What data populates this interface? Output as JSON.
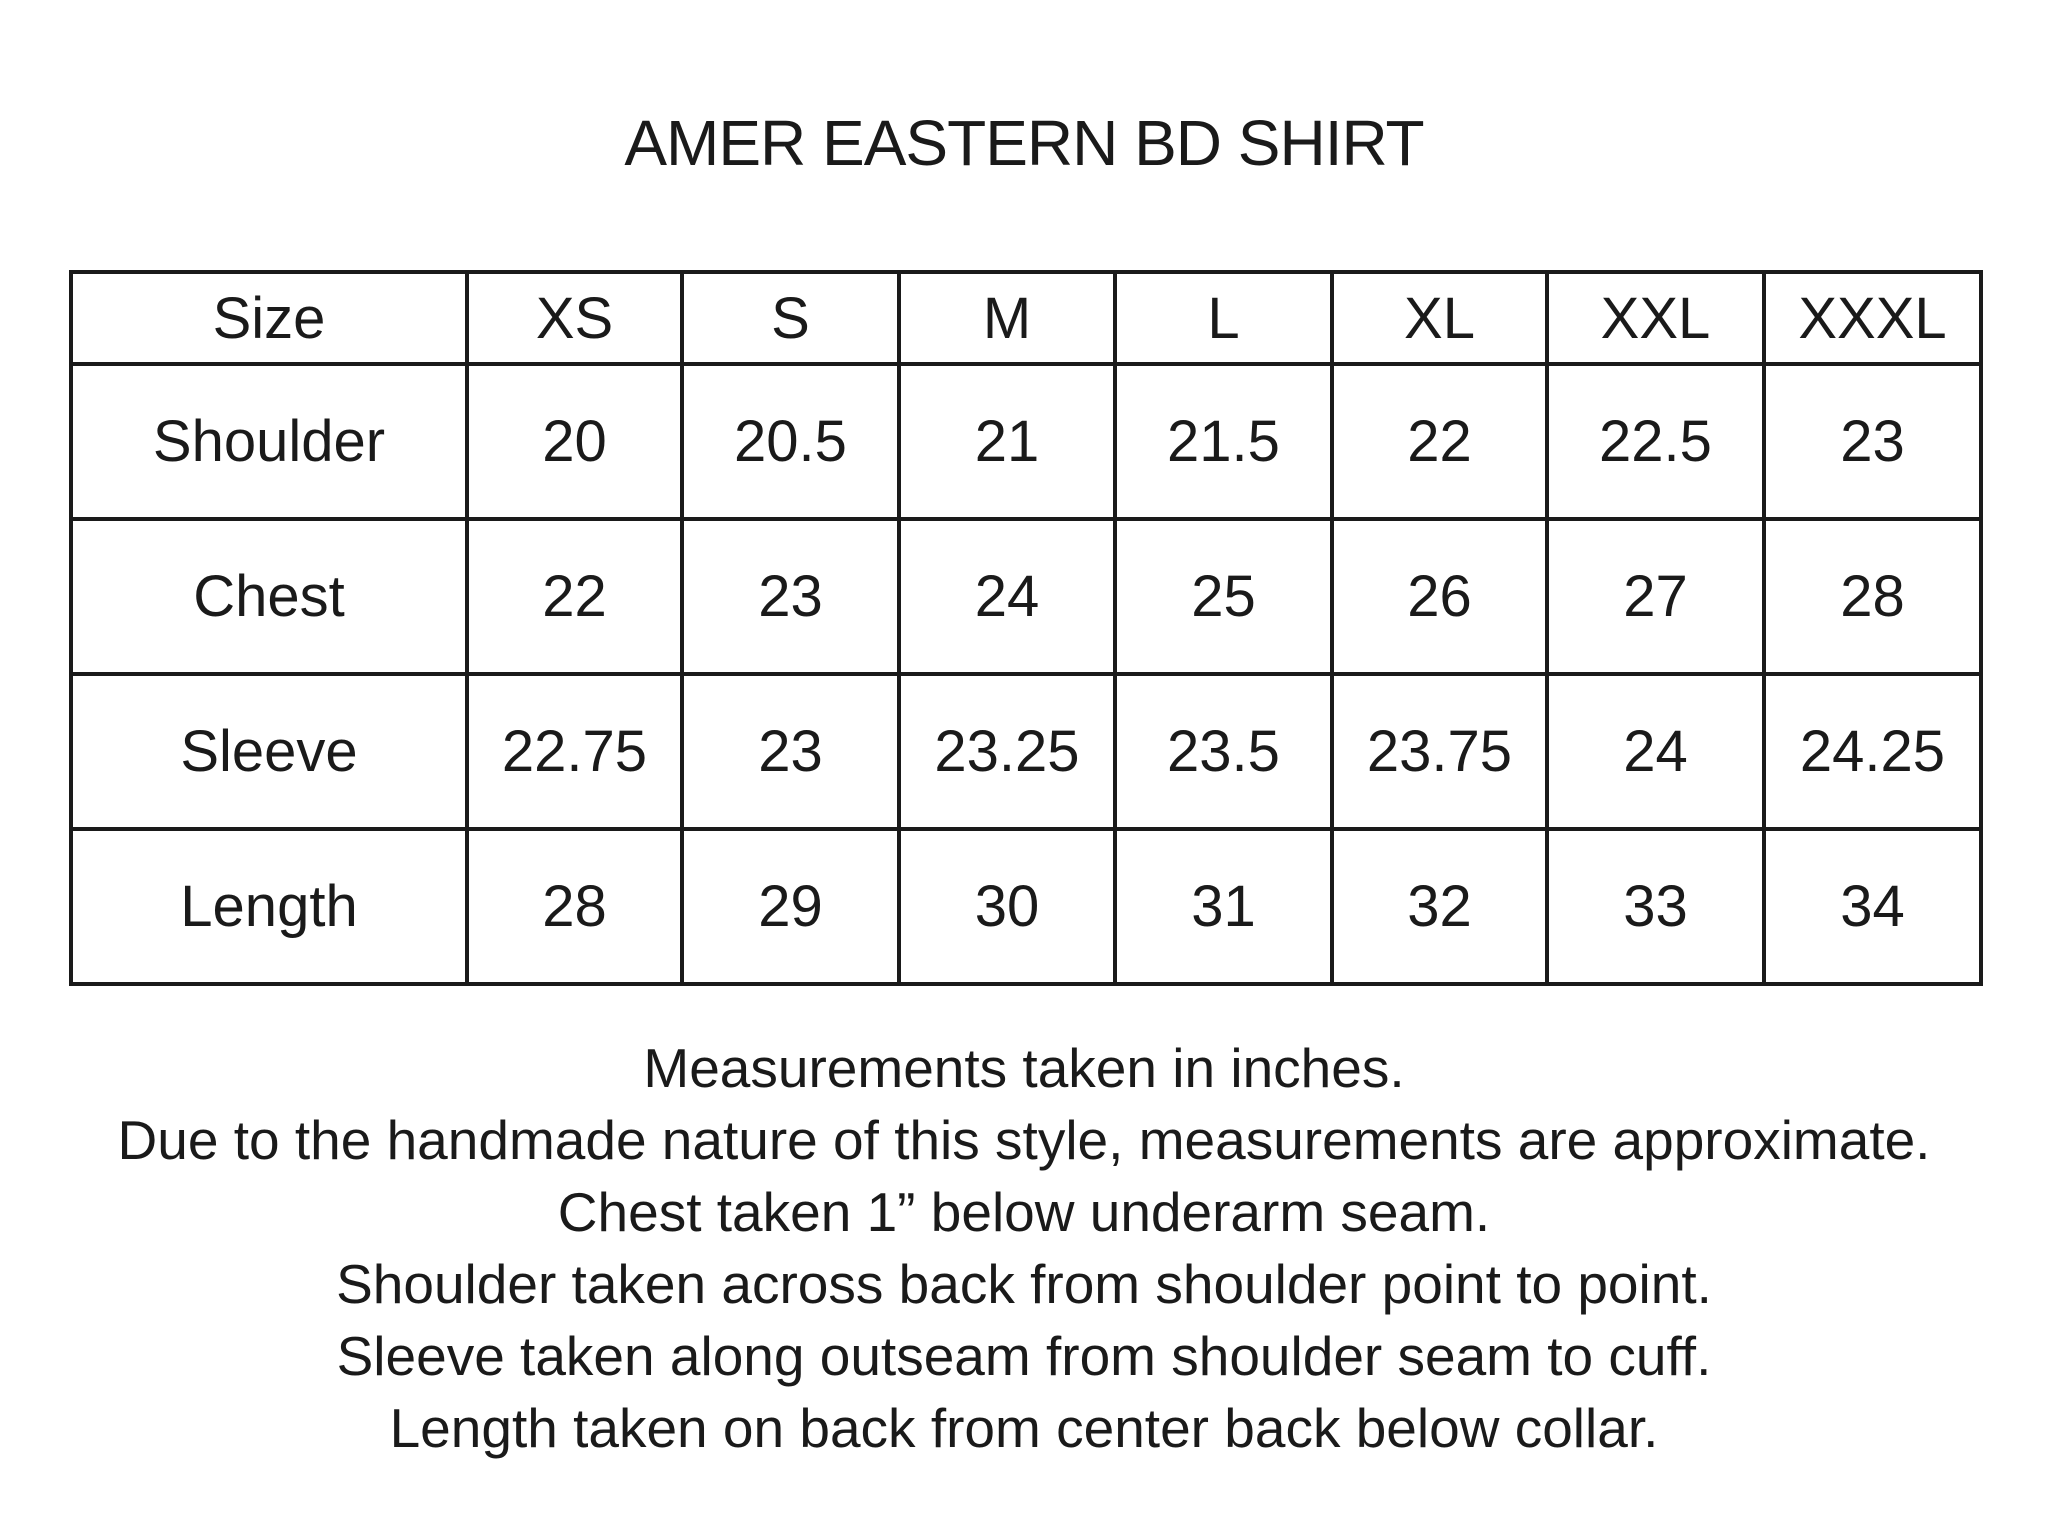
{
  "title": "AMER EASTERN BD SHIRT",
  "table": {
    "header": [
      "Size",
      "XS",
      "S",
      "M",
      "L",
      "XL",
      "XXL",
      "XXXL"
    ],
    "rows": [
      {
        "label": "Shoulder",
        "values": [
          "20",
          "20.5",
          "21",
          "21.5",
          "22",
          "22.5",
          "23"
        ]
      },
      {
        "label": "Chest",
        "values": [
          "22",
          "23",
          "24",
          "25",
          "26",
          "27",
          "28"
        ]
      },
      {
        "label": "Sleeve",
        "values": [
          "22.75",
          "23",
          "23.25",
          "23.5",
          "23.75",
          "24",
          "24.25"
        ]
      },
      {
        "label": "Length",
        "values": [
          "28",
          "29",
          "30",
          "31",
          "32",
          "33",
          "34"
        ]
      }
    ]
  },
  "notes": [
    "Measurements taken in inches.",
    "Due to the handmade nature of this style, measurements are approximate.",
    "Chest taken 1” below underarm seam.",
    "Shoulder taken across back from shoulder point to point.",
    "Sleeve taken along outseam from shoulder seam to cuff.",
    "Length taken on back from center back below collar."
  ]
}
